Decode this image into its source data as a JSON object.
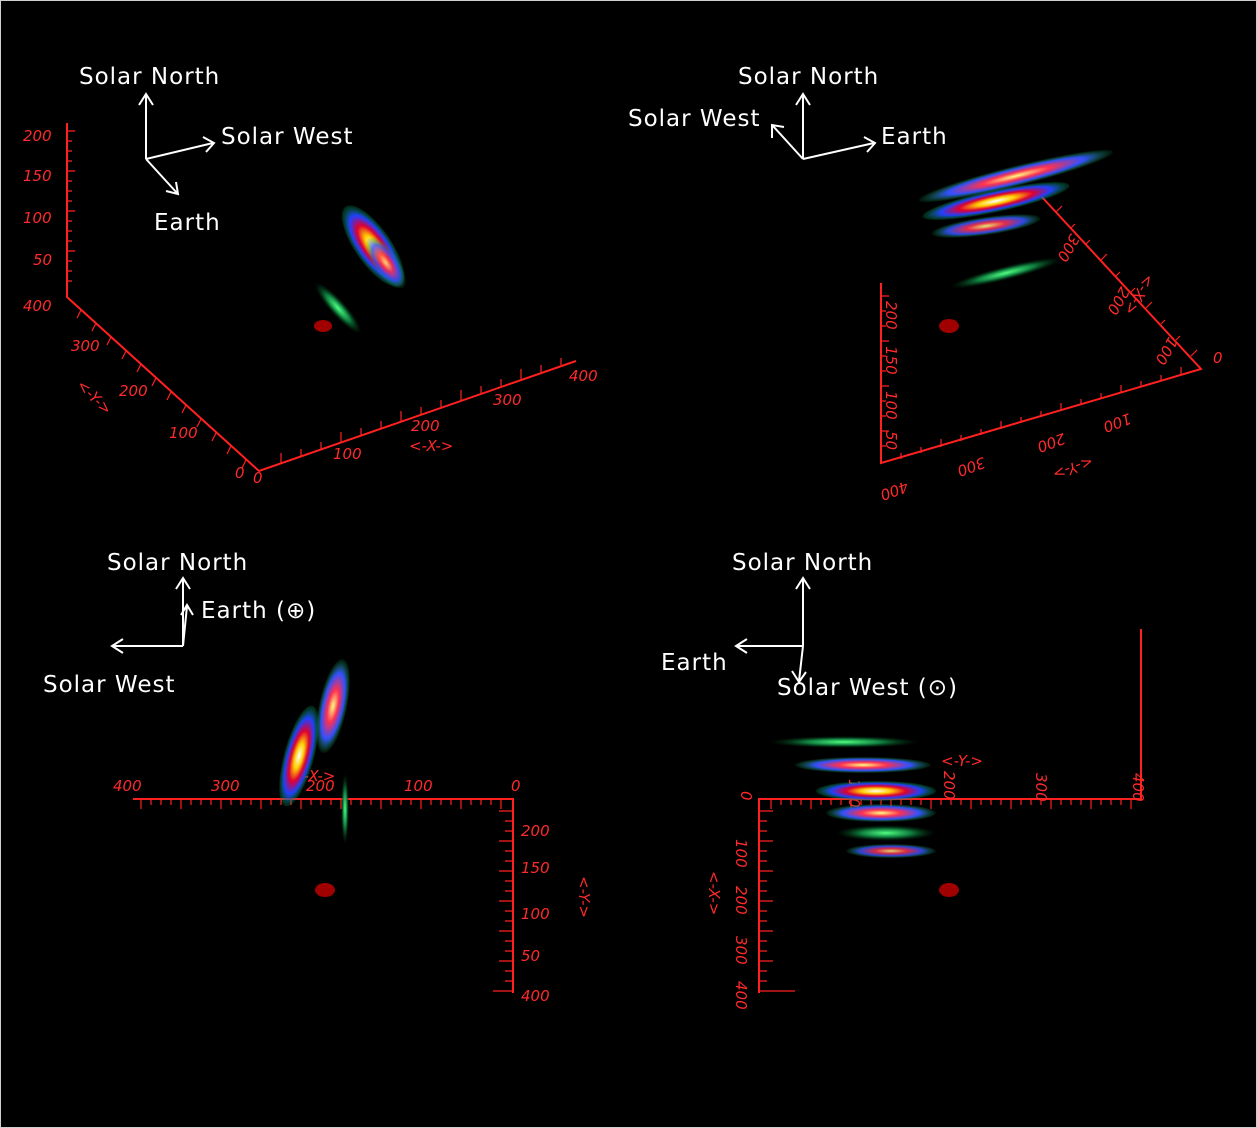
{
  "colors": {
    "background": "#000000",
    "axis": "#ff2020",
    "arrow": "#ffffff",
    "sun": "#c00000"
  },
  "panels": [
    {
      "id": "top-left",
      "labels": {
        "north": "Solar North",
        "west": "Solar West",
        "earth": "Earth"
      },
      "z_ticks": [
        "200",
        "150",
        "100",
        "50"
      ],
      "y_ticks": [
        "400",
        "300",
        "200",
        "100",
        "0"
      ],
      "x_ticks": [
        "0",
        "100",
        "200",
        "300",
        "400"
      ],
      "x_axis_label": "<-X->",
      "y_axis_label": "<-Y->"
    },
    {
      "id": "top-right",
      "labels": {
        "north": "Solar North",
        "west": "Solar West",
        "earth": "Earth"
      },
      "x_ticks": [
        "300",
        "200",
        "100",
        "0"
      ],
      "y_ticks": [
        "0",
        "100",
        "200",
        "300",
        "400"
      ],
      "z_ticks": [
        "200",
        "150",
        "100",
        "50"
      ],
      "x_axis_label": "<-X->",
      "y_axis_label": "<-Y->"
    },
    {
      "id": "bottom-left",
      "labels": {
        "north": "Solar North",
        "west": "Solar West",
        "earth": "Earth (⊕)"
      },
      "x_ticks": [
        "400",
        "300",
        "200",
        "100",
        "0"
      ],
      "y_ticks": [
        "200",
        "150",
        "100",
        "50",
        "400"
      ],
      "x_axis_label": "<-X->",
      "y_axis_label": "<-Y->"
    },
    {
      "id": "bottom-right",
      "labels": {
        "north": "Solar North",
        "west": "Solar West (⊙)",
        "earth": "Earth"
      },
      "x_ticks": [
        "0",
        "100",
        "200",
        "300",
        "400"
      ],
      "y_ticks": [
        "100",
        "200",
        "300",
        "400"
      ],
      "x_axis_label": "<-Y->",
      "y_axis_label": "<-X->"
    }
  ]
}
